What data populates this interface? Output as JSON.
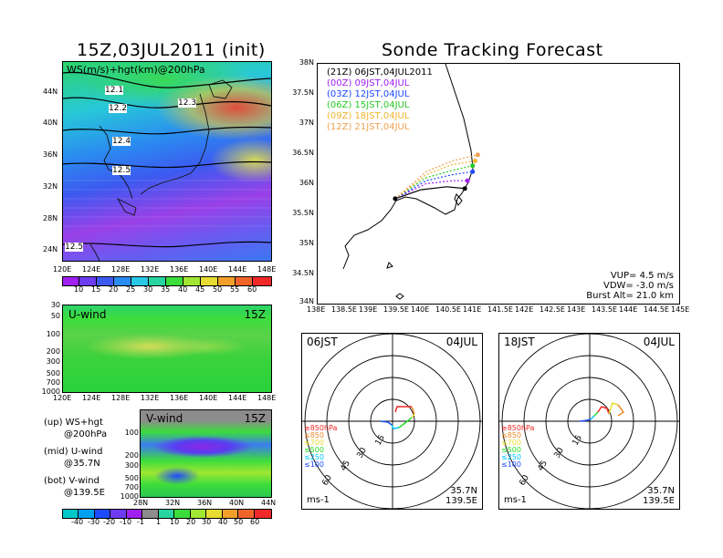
{
  "left_title": "15Z,03JUL2011 (init)",
  "right_title": "Sonde Tracking Forecast",
  "colors": {
    "purple": "#a020f0",
    "blue": "#1e4bff",
    "cyan": "#00c8ff",
    "green": "#28dc28",
    "yellow": "#e6dc32",
    "orange": "#f08c28",
    "red": "#f02828"
  },
  "chart_data": [
    {
      "type": "heatmap",
      "name": "upper-map",
      "title": "WS(m/s)+hgt(km)@200hPa",
      "x_ticks": [
        "120E",
        "124E",
        "128E",
        "132E",
        "136E",
        "140E",
        "144E",
        "148E"
      ],
      "y_ticks": [
        "44N",
        "40N",
        "36N",
        "32N",
        "28N",
        "24N"
      ],
      "contours": [
        "12.1",
        "12.2",
        "12.3",
        "12.4",
        "12.5",
        "12.5"
      ],
      "colorbar": [
        "10",
        "15",
        "20",
        "25",
        "30",
        "35",
        "40",
        "45",
        "50",
        "55",
        "60"
      ]
    },
    {
      "type": "heatmap",
      "name": "u-wind",
      "title": "U-wind",
      "time": "15Z",
      "x_ticks": [
        "120E",
        "124E",
        "128E",
        "132E",
        "136E",
        "140E",
        "144E",
        "148E"
      ],
      "y_ticks": [
        "30",
        "50",
        "100",
        "200",
        "300",
        "500",
        "700",
        "1000"
      ]
    },
    {
      "type": "heatmap",
      "name": "v-wind",
      "title": "V-wind",
      "time": "15Z",
      "x_ticks": [
        "28N",
        "32N",
        "36N",
        "40N",
        "44N"
      ],
      "y_ticks": [
        "100",
        "200",
        "300",
        "500",
        "700",
        "1000"
      ],
      "colorbar": [
        "-40",
        "-30",
        "-20",
        "-10",
        "-1",
        "1",
        "10",
        "20",
        "30",
        "40",
        "50",
        "60"
      ]
    },
    {
      "type": "line",
      "name": "track-map",
      "x_ticks": [
        "138E",
        "138.5E",
        "139E",
        "139.5E",
        "140E",
        "140.5E",
        "141E",
        "141.5E",
        "142E",
        "142.5E",
        "143E",
        "143.5E",
        "144E",
        "144.5E",
        "145E"
      ],
      "y_ticks": [
        "38N",
        "37.5N",
        "37N",
        "36.5N",
        "36N",
        "35.5N",
        "35N",
        "34.5N",
        "34N"
      ],
      "xlim": [
        138,
        145
      ],
      "ylim": [
        34,
        38
      ],
      "series": [
        {
          "name": "(21Z) 06JST,04JUL2011",
          "color": "#000000",
          "points": [
            [
              139.5,
              35.75
            ],
            [
              140.0,
              35.9
            ],
            [
              140.5,
              35.95
            ],
            [
              140.85,
              35.92
            ]
          ]
        },
        {
          "name": "(00Z) 09JST,04JUL",
          "color": "#a020f0",
          "points": [
            [
              139.5,
              35.75
            ],
            [
              140.1,
              36.0
            ],
            [
              140.6,
              36.05
            ],
            [
              140.9,
              36.05
            ]
          ]
        },
        {
          "name": "(03Z) 12JST,04JUL",
          "color": "#1e4bff",
          "points": [
            [
              139.5,
              35.75
            ],
            [
              140.1,
              36.05
            ],
            [
              140.6,
              36.15
            ],
            [
              141.0,
              36.2
            ]
          ]
        },
        {
          "name": "(06Z) 15JST,04JUL",
          "color": "#28c828",
          "points": [
            [
              139.5,
              35.75
            ],
            [
              140.1,
              36.1
            ],
            [
              140.6,
              36.22
            ],
            [
              141.0,
              36.3
            ]
          ]
        },
        {
          "name": "(09Z) 18JST,04JUL",
          "color": "#f0b432",
          "points": [
            [
              139.5,
              35.75
            ],
            [
              140.1,
              36.15
            ],
            [
              140.6,
              36.32
            ],
            [
              141.05,
              36.38
            ]
          ]
        },
        {
          "name": "(12Z) 21JST,04JUL",
          "color": "#f0a050",
          "points": [
            [
              139.5,
              35.75
            ],
            [
              140.1,
              36.2
            ],
            [
              140.6,
              36.38
            ],
            [
              141.1,
              36.48
            ]
          ]
        }
      ],
      "params": [
        "VUP=  4.5 m/s",
        "VDW= -3.0 m/s",
        "Burst Alt= 21.0 km"
      ]
    }
  ],
  "polar1": {
    "time": "06JST",
    "date": "04JUL",
    "rings": [
      "15",
      "30",
      "45",
      "60"
    ],
    "unit": "ms-1",
    "lat": "35.7N",
    "lon": "139.5E"
  },
  "polar2": {
    "time": "18JST",
    "date": "04JUL",
    "rings": [
      "15",
      "30",
      "45",
      "60"
    ],
    "unit": "ms-1",
    "lat": "35.7N",
    "lon": "139.5E"
  },
  "pressure_legend": [
    {
      "label": "≥850hPa",
      "color": "#f02828"
    },
    {
      "label": "≤850",
      "color": "#f08c28"
    },
    {
      "label": "≤700",
      "color": "#e6dc32"
    },
    {
      "label": "≤500",
      "color": "#28dc28"
    },
    {
      "label": "≤250",
      "color": "#00c8ff"
    },
    {
      "label": "≤100",
      "color": "#1e4bff"
    }
  ],
  "notes": [
    {
      "a": "(up) WS+hgt",
      "b": "@200hPa"
    },
    {
      "a": "(mid) U-wind",
      "b": "@35.7N"
    },
    {
      "a": "(bot) V-wind",
      "b": "@139.5E"
    }
  ]
}
